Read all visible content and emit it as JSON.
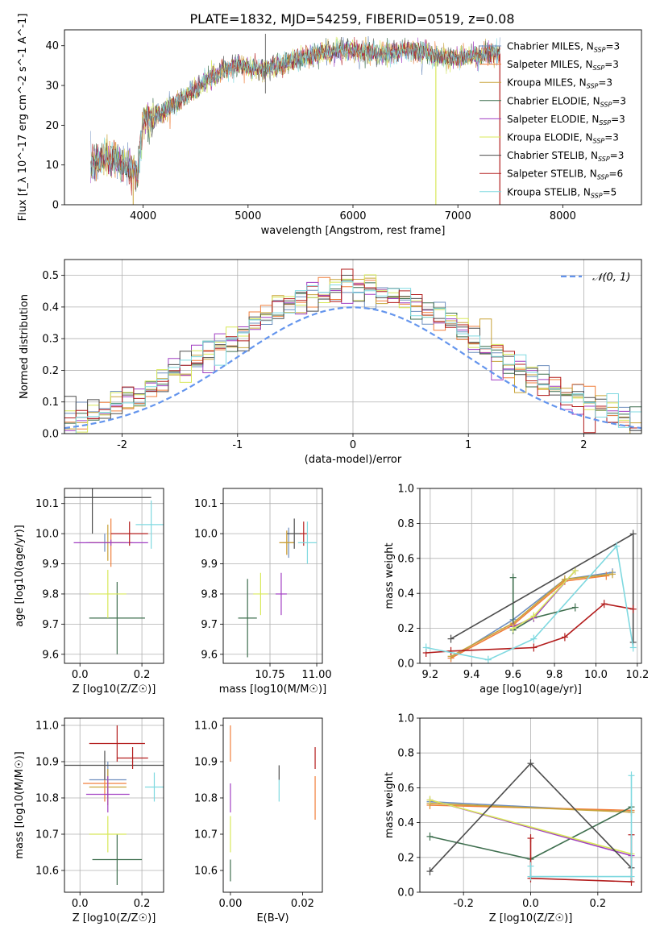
{
  "figure": {
    "title": "PLATE=1832, MJD=54259, FIBERID=0519, z=0.08"
  },
  "colors": {
    "chabrier_miles": "#6f8fbf",
    "salpeter_miles": "#f07f3c",
    "kroupa_miles": "#c8a338",
    "chabrier_elodie": "#3f6f4f",
    "salpeter_elodie": "#a13fc2",
    "kroupa_elodie": "#d8e85a",
    "chabrier_stelib": "#4d4d4d",
    "salpeter_stelib": "#b31d1d",
    "kroupa_stelib": "#7fd9e0",
    "gaussian": "#6495ed"
  },
  "chart_data": [
    {
      "id": "spectrum",
      "type": "line",
      "xlabel": "wavelength [Angstrom, rest frame]",
      "ylabel": "Flux [f_λ 10^-17 erg cm^-2 s^-1 A^-1]",
      "xlim": [
        3250,
        8750
      ],
      "ylim": [
        0,
        44
      ],
      "xticks": [
        4000,
        5000,
        6000,
        7000,
        8000
      ],
      "yticks": [
        0,
        10,
        20,
        30,
        40
      ],
      "grid": false,
      "legend_position": "top-right",
      "legend": [
        "Chabrier MILES, N_SSP=3",
        "Salpeter MILES, N_SSP=3",
        "Kroupa MILES, N_SSP=3",
        "Chabrier ELODIE, N_SSP=3",
        "Salpeter ELODIE, N_SSP=3",
        "Kroupa ELODIE, N_SSP=3",
        "Chabrier STELIB, N_SSP=3",
        "Salpeter STELIB, N_SSP=6",
        "Kroupa STELIB, N_SSP=5"
      ],
      "continuum": {
        "x": [
          3500,
          3650,
          3800,
          3950,
          4000,
          4100,
          4300,
          4500,
          4700,
          4900,
          5100,
          5300,
          5500,
          5700,
          5900,
          6100,
          6300,
          6500,
          6700,
          6900,
          7100,
          7300,
          7400
        ],
        "y": [
          10,
          12,
          10,
          8,
          21,
          22,
          25,
          29,
          33,
          35,
          34,
          35,
          37,
          38,
          39,
          38.5,
          38,
          39,
          38,
          37,
          37,
          38,
          38
        ]
      }
    },
    {
      "id": "residual-hist",
      "type": "line",
      "xlabel": "(data-model)/error",
      "ylabel": "Normed distribution",
      "xlim": [
        -2.5,
        2.5
      ],
      "ylim": [
        0,
        0.55
      ],
      "xticks": [
        -2,
        -1,
        0,
        1,
        2
      ],
      "yticks": [
        0.0,
        0.1,
        0.2,
        0.3,
        0.4,
        0.5
      ],
      "grid": true,
      "legend_position": "top-right",
      "legend": [
        "𝒩(0, 1)"
      ]
    },
    {
      "id": "age-vs-z",
      "type": "scatter",
      "xlabel": "Z [log10(Z/Z☉)]",
      "ylabel": "age [log10(age/yr)]",
      "xlim": [
        -0.05,
        0.27
      ],
      "ylim": [
        9.57,
        10.15
      ],
      "xticks": [
        0.0,
        0.2
      ],
      "yticks": [
        9.6,
        9.7,
        9.8,
        9.9,
        10.0,
        10.1
      ],
      "grid": true,
      "points": [
        {
          "series": "chabrier_miles",
          "x": 0.08,
          "y": 9.97,
          "xerr": 0.06,
          "yerr": 0.03
        },
        {
          "series": "salpeter_miles",
          "x": 0.1,
          "y": 9.97,
          "xerr": 0.07,
          "yerr": 0.08
        },
        {
          "series": "kroupa_miles",
          "x": 0.09,
          "y": 9.97,
          "xerr": 0.06,
          "yerr": 0.06
        },
        {
          "series": "chabrier_elodie",
          "x": 0.12,
          "y": 9.72,
          "xerr": 0.09,
          "yerr": 0.12
        },
        {
          "series": "salpeter_elodie",
          "x": 0.1,
          "y": 9.97,
          "xerr": 0.12,
          "yerr": 0.01
        },
        {
          "series": "kroupa_elodie",
          "x": 0.09,
          "y": 9.8,
          "xerr": 0.06,
          "yerr": 0.08
        },
        {
          "series": "chabrier_stelib",
          "x": 0.04,
          "y": 10.12,
          "xerr": 0.19,
          "yerr": 0.12
        },
        {
          "series": "salpeter_stelib",
          "x": 0.16,
          "y": 10.0,
          "xerr": 0.06,
          "yerr": 0.04
        },
        {
          "series": "kroupa_stelib",
          "x": 0.23,
          "y": 10.03,
          "xerr": 0.05,
          "yerr": 0.08
        }
      ]
    },
    {
      "id": "age-vs-mass",
      "type": "scatter",
      "xlabel": "mass [log10(M/M☉)]",
      "ylabel": "",
      "xlim": [
        10.5,
        11.03
      ],
      "ylim": [
        9.57,
        10.15
      ],
      "xticks": [
        10.75,
        11.0
      ],
      "yticks": [
        9.6,
        9.7,
        9.8,
        9.9,
        10.0,
        10.1
      ],
      "grid": true,
      "points": [
        {
          "series": "chabrier_miles",
          "x": 10.85,
          "y": 9.97,
          "xerr": 0.03,
          "yerr": 0.05
        },
        {
          "series": "salpeter_miles",
          "x": 10.84,
          "y": 9.97,
          "xerr": 0.04,
          "yerr": 0.04
        },
        {
          "series": "kroupa_miles",
          "x": 10.84,
          "y": 9.97,
          "xerr": 0.04,
          "yerr": 0.04
        },
        {
          "series": "chabrier_elodie",
          "x": 10.63,
          "y": 9.72,
          "xerr": 0.05,
          "yerr": 0.13
        },
        {
          "series": "salpeter_elodie",
          "x": 10.81,
          "y": 9.8,
          "xerr": 0.03,
          "yerr": 0.07
        },
        {
          "series": "kroupa_elodie",
          "x": 10.7,
          "y": 9.8,
          "xerr": 0.04,
          "yerr": 0.07
        },
        {
          "series": "chabrier_stelib",
          "x": 10.88,
          "y": 10.0,
          "xerr": 0.04,
          "yerr": 0.05
        },
        {
          "series": "salpeter_stelib",
          "x": 10.93,
          "y": 10.0,
          "xerr": 0.02,
          "yerr": 0.04
        },
        {
          "series": "kroupa_stelib",
          "x": 10.95,
          "y": 9.97,
          "xerr": 0.05,
          "yerr": 0.07
        }
      ]
    },
    {
      "id": "mass-weight-vs-age",
      "type": "line",
      "xlabel": "age [log10(age/yr)]",
      "ylabel": "mass weight",
      "xlim": [
        9.15,
        10.22
      ],
      "ylim": [
        0.0,
        1.0
      ],
      "xticks": [
        9.2,
        9.4,
        9.6,
        9.8,
        10.0,
        10.2
      ],
      "yticks": [
        0.0,
        0.2,
        0.4,
        0.6,
        0.8,
        1.0
      ],
      "grid": true,
      "series": [
        {
          "series": "chabrier_miles",
          "x": [
            9.3,
            9.6,
            9.85,
            10.08
          ],
          "y": [
            0.03,
            0.25,
            0.48,
            0.52
          ]
        },
        {
          "series": "salpeter_miles",
          "x": [
            9.3,
            9.6,
            9.85,
            10.05
          ],
          "y": [
            0.03,
            0.22,
            0.47,
            0.5
          ]
        },
        {
          "series": "kroupa_miles",
          "x": [
            9.3,
            9.6,
            9.85,
            10.08
          ],
          "y": [
            0.04,
            0.23,
            0.48,
            0.51
          ]
        },
        {
          "series": "chabrier_elodie",
          "x": [
            9.6,
            9.6,
            9.7,
            9.9
          ],
          "y": [
            0.49,
            0.19,
            0.26,
            0.32
          ]
        },
        {
          "series": "salpeter_elodie",
          "x": [
            9.6,
            9.7,
            9.9
          ],
          "y": [
            0.21,
            0.26,
            0.53
          ]
        },
        {
          "series": "kroupa_elodie",
          "x": [
            9.6,
            9.7,
            9.9
          ],
          "y": [
            0.2,
            0.27,
            0.53
          ]
        },
        {
          "series": "chabrier_stelib",
          "x": [
            9.3,
            10.18,
            10.18
          ],
          "y": [
            0.14,
            0.74,
            0.12
          ]
        },
        {
          "series": "salpeter_stelib",
          "x": [
            9.18,
            9.3,
            9.7,
            9.85,
            10.04,
            10.18
          ],
          "y": [
            0.06,
            0.07,
            0.09,
            0.15,
            0.34,
            0.31
          ]
        },
        {
          "series": "kroupa_stelib",
          "x": [
            9.18,
            9.48,
            9.7,
            10.1,
            10.18
          ],
          "y": [
            0.09,
            0.02,
            0.14,
            0.67,
            0.09
          ]
        }
      ]
    },
    {
      "id": "mass-vs-z",
      "type": "scatter",
      "xlabel": "Z [log10(Z/Z☉)]",
      "ylabel": "mass [log10(M/M☉)]",
      "xlim": [
        -0.05,
        0.27
      ],
      "ylim": [
        10.54,
        11.02
      ],
      "xticks": [
        0.0,
        0.2
      ],
      "yticks": [
        10.6,
        10.7,
        10.8,
        10.9,
        11.0
      ],
      "grid": true,
      "points": [
        {
          "series": "chabrier_miles",
          "x": 0.09,
          "y": 10.85,
          "xerr": 0.06,
          "yerr": 0.05
        },
        {
          "series": "salpeter_miles",
          "x": 0.08,
          "y": 10.84,
          "xerr": 0.07,
          "yerr": 0.05
        },
        {
          "series": "kroupa_miles",
          "x": 0.09,
          "y": 10.83,
          "xerr": 0.06,
          "yerr": 0.05
        },
        {
          "series": "chabrier_elodie",
          "x": 0.12,
          "y": 10.63,
          "xerr": 0.08,
          "yerr": 0.07
        },
        {
          "series": "salpeter_elodie",
          "x": 0.09,
          "y": 10.81,
          "xerr": 0.07,
          "yerr": 0.05
        },
        {
          "series": "kroupa_elodie",
          "x": 0.09,
          "y": 10.7,
          "xerr": 0.06,
          "yerr": 0.05
        },
        {
          "series": "chabrier_stelib",
          "x": 0.08,
          "y": 10.89,
          "xerr": 0.19,
          "yerr": 0.04
        },
        {
          "series": "salpeter_stelib",
          "x": 0.17,
          "y": 10.91,
          "xerr": 0.05,
          "yerr": 0.03
        },
        {
          "series": "kroupa_stelib",
          "x": 0.24,
          "y": 10.83,
          "xerr": 0.03,
          "yerr": 0.04
        },
        {
          "series": "salpeter_stelib",
          "x": 0.12,
          "y": 10.95,
          "xerr": 0.09,
          "yerr": 0.05
        }
      ]
    },
    {
      "id": "mass-vs-ebv",
      "type": "scatter",
      "xlabel": "E(B-V)",
      "ylabel": "",
      "xlim": [
        -0.002,
        0.0255
      ],
      "ylim": [
        10.54,
        11.02
      ],
      "xticks": [
        0.0,
        0.02
      ],
      "yticks": [
        10.6,
        10.7,
        10.8,
        10.9,
        11.0
      ],
      "grid": false,
      "points": [
        {
          "series": "salpeter_elodie",
          "x": 0.0,
          "y": 10.8,
          "xerr": 0,
          "yerr": 0.04
        },
        {
          "series": "kroupa_elodie",
          "x": 0.0,
          "y": 10.7,
          "xerr": 0,
          "yerr": 0.05
        },
        {
          "series": "chabrier_elodie",
          "x": 0.0,
          "y": 10.6,
          "xerr": 0,
          "yerr": 0.03
        },
        {
          "series": "salpeter_miles",
          "x": 0.0,
          "y": 10.95,
          "xerr": 0,
          "yerr": 0.05
        },
        {
          "series": "chabrier_stelib",
          "x": 0.0135,
          "y": 10.87,
          "xerr": 0,
          "yerr": 0.02
        },
        {
          "series": "kroupa_stelib",
          "x": 0.0135,
          "y": 10.82,
          "xerr": 0,
          "yerr": 0.03
        },
        {
          "series": "salpeter_miles",
          "x": 0.0235,
          "y": 10.8,
          "xerr": 0,
          "yerr": 0.06
        },
        {
          "series": "salpeter_stelib",
          "x": 0.0235,
          "y": 10.91,
          "xerr": 0,
          "yerr": 0.03
        }
      ]
    },
    {
      "id": "mass-weight-vs-z",
      "type": "line",
      "xlabel": "Z [log10(Z/Z☉)]",
      "ylabel": "mass weight",
      "xlim": [
        -0.33,
        0.33
      ],
      "ylim": [
        0.0,
        1.0
      ],
      "xticks": [
        -0.2,
        0.0,
        0.2
      ],
      "yticks": [
        0.0,
        0.2,
        0.4,
        0.6,
        0.8,
        1.0
      ],
      "grid": true,
      "series": [
        {
          "series": "chabrier_miles",
          "x": [
            -0.3,
            0.3
          ],
          "y": [
            0.52,
            0.46
          ]
        },
        {
          "series": "salpeter_miles",
          "x": [
            -0.3,
            0.3
          ],
          "y": [
            0.5,
            0.47
          ]
        },
        {
          "series": "kroupa_miles",
          "x": [
            -0.3,
            0.3
          ],
          "y": [
            0.51,
            0.46
          ]
        },
        {
          "series": "chabrier_elodie",
          "x": [
            -0.3,
            0.0,
            0.3
          ],
          "y": [
            0.32,
            0.19,
            0.49
          ]
        },
        {
          "series": "salpeter_elodie",
          "x": [
            -0.3,
            0.3
          ],
          "y": [
            0.53,
            0.21
          ]
        },
        {
          "series": "kroupa_elodie",
          "x": [
            -0.3,
            0.3
          ],
          "y": [
            0.53,
            0.22
          ]
        },
        {
          "series": "chabrier_stelib",
          "x": [
            -0.3,
            0.0,
            0.3
          ],
          "y": [
            0.12,
            0.74,
            0.14
          ]
        },
        {
          "series": "salpeter_stelib",
          "x": [
            0.0,
            0.0,
            0.3,
            0.3
          ],
          "y": [
            0.31,
            0.08,
            0.06,
            0.33
          ]
        },
        {
          "series": "kroupa_stelib",
          "x": [
            0.0,
            0.0,
            0.3,
            0.3
          ],
          "y": [
            0.15,
            0.09,
            0.09,
            0.67
          ]
        }
      ]
    }
  ]
}
